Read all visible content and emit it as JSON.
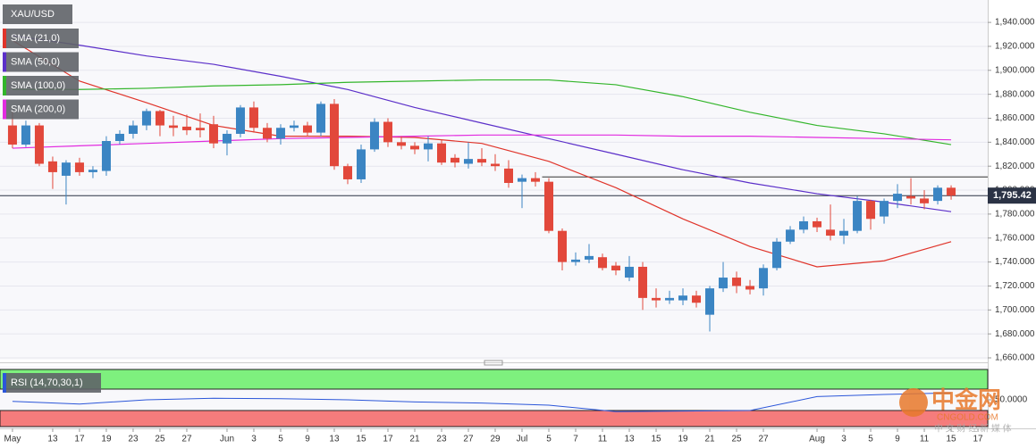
{
  "chart_data": {
    "type": "candlestick",
    "symbol": "XAU/USD",
    "up_color": "#3b85c3",
    "down_color": "#e2483b",
    "xlim": [
      -0.93,
      72.73
    ],
    "ylim": [
      1658.5,
      1958.7
    ],
    "xticks": [
      {
        "value": 0,
        "label": "May"
      },
      {
        "value": 3,
        "label": "13"
      },
      {
        "value": 5,
        "label": "17"
      },
      {
        "value": 7,
        "label": "19"
      },
      {
        "value": 9,
        "label": "23"
      },
      {
        "value": 11,
        "label": "25"
      },
      {
        "value": 13,
        "label": "27"
      },
      {
        "value": 16,
        "label": "Jun"
      },
      {
        "value": 18,
        "label": "3"
      },
      {
        "value": 20,
        "label": "5"
      },
      {
        "value": 22,
        "label": "9"
      },
      {
        "value": 24,
        "label": "13"
      },
      {
        "value": 26,
        "label": "15"
      },
      {
        "value": 28,
        "label": "17"
      },
      {
        "value": 30,
        "label": "21"
      },
      {
        "value": 32,
        "label": "23"
      },
      {
        "value": 34,
        "label": "27"
      },
      {
        "value": 36,
        "label": "29"
      },
      {
        "value": 38,
        "label": "Jul"
      },
      {
        "value": 40,
        "label": "5"
      },
      {
        "value": 42,
        "label": "7"
      },
      {
        "value": 44,
        "label": "11"
      },
      {
        "value": 46,
        "label": "13"
      },
      {
        "value": 48,
        "label": "15"
      },
      {
        "value": 50,
        "label": "19"
      },
      {
        "value": 52,
        "label": "21"
      },
      {
        "value": 54,
        "label": "25"
      },
      {
        "value": 56,
        "label": "27"
      },
      {
        "value": 60,
        "label": "Aug"
      },
      {
        "value": 62,
        "label": "3"
      },
      {
        "value": 64,
        "label": "5"
      },
      {
        "value": 66,
        "label": "9"
      },
      {
        "value": 68,
        "label": "11"
      },
      {
        "value": 70,
        "label": "15"
      },
      {
        "value": 72,
        "label": "17"
      }
    ],
    "yticks": [
      {
        "value": 1660,
        "label": "1,660.000"
      },
      {
        "value": 1680,
        "label": "1,680.000"
      },
      {
        "value": 1700,
        "label": "1,700.000"
      },
      {
        "value": 1720,
        "label": "1,720.000"
      },
      {
        "value": 1740,
        "label": "1,740.000"
      },
      {
        "value": 1760,
        "label": "1,760.000"
      },
      {
        "value": 1780,
        "label": "1,780.000"
      },
      {
        "value": 1800,
        "label": "1,800.000"
      },
      {
        "value": 1820,
        "label": "1,820.000"
      },
      {
        "value": 1840,
        "label": "1,840.000"
      },
      {
        "value": 1860,
        "label": "1,860.000"
      },
      {
        "value": 1880,
        "label": "1,880.000"
      },
      {
        "value": 1900,
        "label": "1,900.000"
      },
      {
        "value": 1920,
        "label": "1,920.000"
      },
      {
        "value": 1940,
        "label": "1,940.000"
      }
    ],
    "open": [
      1854,
      1838,
      1854,
      1824,
      1812,
      1823,
      1815,
      1816,
      1841,
      1847,
      1854,
      1866,
      1854,
      1853,
      1852,
      1855,
      1839,
      1847,
      1869,
      1852,
      1843,
      1852,
      1854,
      1848,
      1872,
      1820,
      1809,
      1834,
      1857,
      1840,
      1837,
      1834,
      1839,
      1827,
      1822,
      1826,
      1822,
      1818,
      1807,
      1810,
      1807,
      1766,
      1740,
      1742,
      1744,
      1737,
      1727,
      1736,
      1710,
      1708,
      1708,
      1712,
      1696,
      1718,
      1727,
      1720,
      1718,
      1735,
      1757,
      1767,
      1774,
      1767,
      1762,
      1766,
      1791,
      1778,
      1791,
      1795,
      1793,
      1791,
      1802
    ],
    "high": [
      1866,
      1858,
      1856,
      1828,
      1825,
      1827,
      1820,
      1845,
      1850,
      1858,
      1868,
      1867,
      1862,
      1863,
      1864,
      1862,
      1850,
      1871,
      1874,
      1856,
      1855,
      1858,
      1857,
      1874,
      1876,
      1822,
      1838,
      1860,
      1860,
      1845,
      1840,
      1845,
      1842,
      1830,
      1840,
      1835,
      1830,
      1825,
      1813,
      1815,
      1810,
      1768,
      1748,
      1755,
      1747,
      1740,
      1745,
      1740,
      1718,
      1716,
      1718,
      1716,
      1720,
      1740,
      1732,
      1725,
      1738,
      1760,
      1770,
      1778,
      1777,
      1788,
      1776,
      1795,
      1792,
      1793,
      1805,
      1810,
      1800,
      1804,
      1804
    ],
    "low": [
      1835,
      1836,
      1820,
      1801,
      1788,
      1812,
      1810,
      1812,
      1838,
      1843,
      1850,
      1845,
      1845,
      1846,
      1844,
      1835,
      1829,
      1844,
      1848,
      1840,
      1838,
      1849,
      1845,
      1845,
      1817,
      1805,
      1806,
      1832,
      1836,
      1834,
      1830,
      1824,
      1821,
      1819,
      1818,
      1820,
      1816,
      1802,
      1785,
      1803,
      1764,
      1733,
      1737,
      1739,
      1733,
      1729,
      1724,
      1700,
      1702,
      1705,
      1704,
      1702,
      1682,
      1715,
      1714,
      1713,
      1712,
      1733,
      1755,
      1764,
      1765,
      1758,
      1755,
      1764,
      1767,
      1772,
      1785,
      1788,
      1784,
      1788,
      1792
    ],
    "close": [
      1838,
      1854,
      1822,
      1815,
      1823,
      1815,
      1817,
      1841,
      1847,
      1854,
      1866,
      1854,
      1852,
      1850,
      1850,
      1839,
      1847,
      1869,
      1852,
      1843,
      1852,
      1854,
      1848,
      1872,
      1820,
      1809,
      1834,
      1857,
      1840,
      1837,
      1834,
      1839,
      1823,
      1823,
      1826,
      1823,
      1820,
      1806,
      1810,
      1807,
      1766,
      1740,
      1742,
      1745,
      1735,
      1733,
      1736,
      1710,
      1708,
      1710,
      1712,
      1706,
      1718,
      1727,
      1720,
      1717,
      1735,
      1757,
      1767,
      1774,
      1769,
      1762,
      1766,
      1791,
      1776,
      1791,
      1797,
      1793,
      1789,
      1802,
      1795.42
    ],
    "indicators": [
      {
        "name": "SMA (21,0)",
        "color": "#e0342a",
        "x": [
          0,
          5,
          10,
          15,
          20,
          25,
          30,
          35,
          40,
          45,
          50,
          55,
          60,
          65,
          70
        ],
        "values": [
          1925,
          1891,
          1873,
          1854,
          1845,
          1845,
          1844,
          1839,
          1824,
          1802,
          1776,
          1753,
          1736,
          1741,
          1757
        ]
      },
      {
        "name": "SMA (50,0)",
        "color": "#5b2fc9",
        "x": [
          0,
          5,
          10,
          15,
          20,
          25,
          30,
          35,
          40,
          45,
          50,
          55,
          60,
          65,
          70
        ],
        "values": [
          1929,
          1921,
          1912,
          1905,
          1895,
          1884,
          1869,
          1856,
          1843,
          1830,
          1817,
          1806,
          1797,
          1790,
          1782
        ]
      },
      {
        "name": "SMA (100,0)",
        "color": "#32b52a",
        "x": [
          0,
          5,
          10,
          15,
          20,
          25,
          30,
          35,
          40,
          45,
          50,
          55,
          60,
          65,
          70
        ],
        "values": [
          1884,
          1884,
          1885,
          1887,
          1888,
          1890,
          1891,
          1892,
          1892,
          1888,
          1878,
          1865,
          1854,
          1847,
          1838
        ]
      },
      {
        "name": "SMA (200,0)",
        "color": "#e22be0",
        "x": [
          0,
          5,
          10,
          15,
          20,
          25,
          30,
          35,
          40,
          45,
          50,
          55,
          60,
          65,
          70
        ],
        "values": [
          1835,
          1837,
          1839,
          1841,
          1843,
          1844,
          1845,
          1846,
          1846,
          1846,
          1845,
          1845,
          1844,
          1843,
          1842
        ]
      }
    ],
    "level": {
      "value": 1811,
      "from": 39.5
    },
    "current_price": {
      "value": 1795.42,
      "label": "1,795.42"
    },
    "rsi": {
      "name": "RSI (14,70,30,1)",
      "color": "#2b56d9",
      "ylim": [
        0,
        100
      ],
      "upper": 70,
      "lower": 30,
      "yticks": [
        {
          "value": 50,
          "label": "50.0000"
        }
      ],
      "x": [
        0,
        5,
        10,
        15,
        20,
        25,
        30,
        35,
        40,
        45,
        50,
        55,
        60,
        65,
        70
      ],
      "values": [
        47,
        42,
        50,
        53,
        52,
        50,
        46,
        44,
        40,
        28,
        29,
        30,
        56,
        60,
        63
      ]
    },
    "watermark": {
      "logo": "中金网",
      "site": "CNGOLD.COM",
      "tagline": "中 文 财 经 新 媒 体"
    }
  }
}
